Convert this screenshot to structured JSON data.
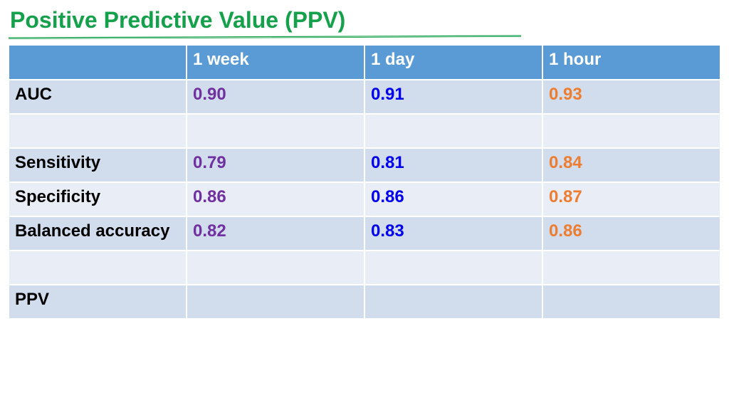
{
  "slide": {
    "title": "Positive Predictive Value (PPV)",
    "title_color": "#15a04b"
  },
  "table": {
    "header": {
      "corner": "",
      "columns": [
        "1 week",
        "1 day",
        "1 hour"
      ]
    },
    "rows": [
      {
        "label": "AUC",
        "values": [
          "0.90",
          "0.91",
          "0.93"
        ]
      },
      {
        "label": "",
        "values": [
          "",
          "",
          ""
        ]
      },
      {
        "label": "Sensitivity",
        "values": [
          "0.79",
          "0.81",
          "0.84"
        ]
      },
      {
        "label": "Specificity",
        "values": [
          "0.86",
          "0.86",
          "0.87"
        ]
      },
      {
        "label": "Balanced accuracy",
        "values": [
          "0.82",
          "0.83",
          "0.86"
        ]
      },
      {
        "label": "",
        "values": [
          "",
          "",
          ""
        ]
      },
      {
        "label": "PPV",
        "values": [
          "",
          "",
          ""
        ]
      }
    ],
    "colors": {
      "header_bg": "#5b9bd5",
      "band_a": "#d1dcec",
      "band_b": "#e9edf5",
      "week_value": "#7030a0",
      "day_value": "#0000ee",
      "hour_value": "#ed7d31"
    }
  }
}
